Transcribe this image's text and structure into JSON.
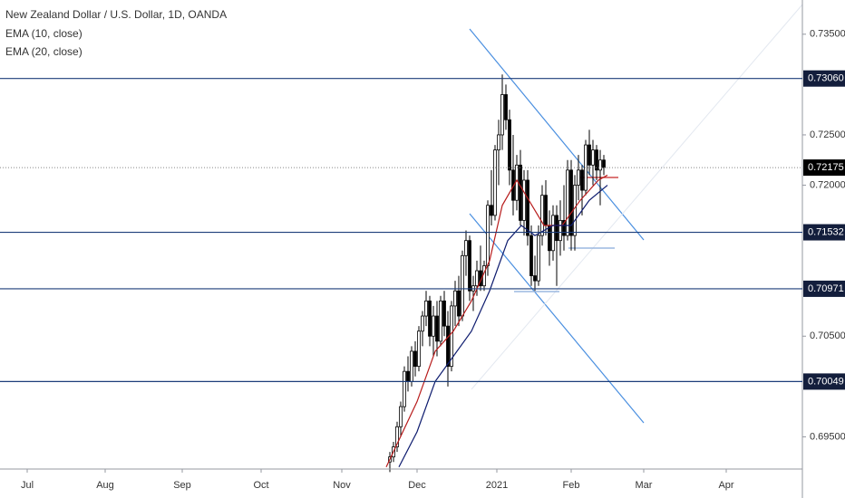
{
  "chart_data": {
    "type": "candlestick",
    "title": "New Zealand Dollar / U.S. Dollar, 1D, OANDA",
    "xlim": [
      -7.5,
      213.75
    ],
    "ylim": [
      0.6918,
      0.7384
    ],
    "xticks": [
      {
        "value": 0,
        "label": "Jul"
      },
      {
        "value": 21.5,
        "label": "Aug"
      },
      {
        "value": 42.75,
        "label": "Sep"
      },
      {
        "value": 64.5,
        "label": "Oct"
      },
      {
        "value": 86.75,
        "label": "Nov"
      },
      {
        "value": 107.5,
        "label": "Dec"
      },
      {
        "value": 129.5,
        "label": "2021"
      },
      {
        "value": 150,
        "label": "Feb"
      },
      {
        "value": 170,
        "label": "Mar"
      },
      {
        "value": 192.75,
        "label": "Apr"
      }
    ],
    "yticks": [
      {
        "value": 0.735,
        "label": "0.73500"
      },
      {
        "value": 0.725,
        "label": "0.72500"
      },
      {
        "value": 0.72,
        "label": "0.72000"
      },
      {
        "value": 0.705,
        "label": "0.70500"
      },
      {
        "value": 0.695,
        "label": "0.69500"
      }
    ],
    "up_color": "#ffffff",
    "down_color": "#000000",
    "candles": {
      "x": [
        100,
        101,
        102,
        103,
        104,
        105,
        106,
        107,
        108,
        109,
        110,
        111,
        112,
        113,
        114,
        115,
        116,
        117,
        118,
        119,
        120,
        121,
        122,
        123,
        124,
        125,
        126,
        127,
        128,
        129,
        130,
        131,
        132,
        133,
        134,
        135,
        136,
        137,
        138,
        139,
        140,
        141,
        142,
        143,
        144,
        145,
        146,
        147,
        148,
        149,
        150,
        151,
        152,
        153,
        154,
        155,
        156,
        157,
        158,
        159
      ],
      "open": [
        0.6925,
        0.693,
        0.694,
        0.696,
        0.698,
        0.7015,
        0.7005,
        0.7035,
        0.702,
        0.7055,
        0.707,
        0.7085,
        0.705,
        0.707,
        0.7045,
        0.7085,
        0.706,
        0.702,
        0.708,
        0.7095,
        0.707,
        0.713,
        0.7145,
        0.7095,
        0.71,
        0.7115,
        0.71,
        0.712,
        0.718,
        0.717,
        0.7235,
        0.725,
        0.729,
        0.7265,
        0.7215,
        0.7185,
        0.722,
        0.7165,
        0.7205,
        0.715,
        0.711,
        0.7105,
        0.715,
        0.719,
        0.716,
        0.7135,
        0.717,
        0.7145,
        0.7165,
        0.715,
        0.7215,
        0.715,
        0.72,
        0.7215,
        0.7195,
        0.724,
        0.722,
        0.7235,
        0.7215,
        0.7225
      ],
      "high": [
        0.6935,
        0.6945,
        0.6965,
        0.6985,
        0.702,
        0.703,
        0.704,
        0.7045,
        0.706,
        0.7075,
        0.7095,
        0.709,
        0.708,
        0.7085,
        0.709,
        0.7095,
        0.7075,
        0.7085,
        0.7105,
        0.711,
        0.7135,
        0.7155,
        0.715,
        0.711,
        0.7125,
        0.714,
        0.7125,
        0.7185,
        0.7215,
        0.724,
        0.7265,
        0.731,
        0.73,
        0.7275,
        0.725,
        0.723,
        0.7235,
        0.7215,
        0.7215,
        0.716,
        0.713,
        0.716,
        0.72,
        0.7205,
        0.7175,
        0.718,
        0.718,
        0.7185,
        0.72,
        0.7225,
        0.7225,
        0.721,
        0.723,
        0.722,
        0.7245,
        0.7255,
        0.7245,
        0.724,
        0.7235,
        0.723
      ],
      "low": [
        0.6915,
        0.6925,
        0.6935,
        0.695,
        0.6975,
        0.6995,
        0.7,
        0.701,
        0.7015,
        0.704,
        0.706,
        0.704,
        0.703,
        0.703,
        0.704,
        0.705,
        0.7,
        0.7015,
        0.706,
        0.706,
        0.7065,
        0.711,
        0.7085,
        0.7075,
        0.709,
        0.7095,
        0.7095,
        0.711,
        0.716,
        0.7165,
        0.72,
        0.7235,
        0.7255,
        0.72,
        0.717,
        0.7175,
        0.716,
        0.715,
        0.714,
        0.71,
        0.7095,
        0.71,
        0.714,
        0.715,
        0.712,
        0.7125,
        0.71,
        0.713,
        0.7135,
        0.7145,
        0.7135,
        0.7135,
        0.7185,
        0.717,
        0.719,
        0.721,
        0.72,
        0.7205,
        0.718,
        0.721
      ],
      "close": [
        0.693,
        0.694,
        0.696,
        0.698,
        0.7015,
        0.7005,
        0.7035,
        0.702,
        0.7055,
        0.707,
        0.7085,
        0.705,
        0.707,
        0.7045,
        0.7085,
        0.706,
        0.702,
        0.708,
        0.7095,
        0.707,
        0.713,
        0.7145,
        0.7095,
        0.71,
        0.7115,
        0.71,
        0.712,
        0.718,
        0.717,
        0.7235,
        0.725,
        0.729,
        0.7265,
        0.7215,
        0.7185,
        0.722,
        0.7165,
        0.7205,
        0.715,
        0.711,
        0.7105,
        0.715,
        0.719,
        0.716,
        0.7135,
        0.717,
        0.7145,
        0.7165,
        0.715,
        0.7215,
        0.715,
        0.72,
        0.7215,
        0.7195,
        0.724,
        0.722,
        0.7235,
        0.7215,
        0.7225,
        0.72175
      ]
    },
    "series": [
      {
        "name": "EMA (10, close)",
        "color": "#b71c1c",
        "x": [
          99,
          107.5,
          112.5,
          117.5,
          122.5,
          127.5,
          131,
          135,
          140,
          142.5,
          147.5,
          152.5,
          157.5,
          160
        ],
        "values": [
          0.692,
          0.6985,
          0.7035,
          0.7055,
          0.7085,
          0.7125,
          0.718,
          0.7205,
          0.7175,
          0.716,
          0.716,
          0.7185,
          0.7205,
          0.721
        ]
      },
      {
        "name": "EMA (20, close)",
        "color": "#0d1b6e",
        "x": [
          102.5,
          107.5,
          112.5,
          117.5,
          122.5,
          127.5,
          132.5,
          136.25,
          140,
          145,
          150,
          155,
          160
        ],
        "values": [
          0.692,
          0.6955,
          0.7005,
          0.703,
          0.7055,
          0.7095,
          0.7145,
          0.716,
          0.715,
          0.716,
          0.716,
          0.7185,
          0.72
        ]
      }
    ],
    "levels": [
      {
        "value": 0.7306,
        "label": "0.73060"
      },
      {
        "value": 0.71532,
        "label": "0.71532"
      },
      {
        "value": 0.70971,
        "label": "0.70971"
      },
      {
        "value": 0.70049,
        "label": "0.70049"
      }
    ],
    "last_price": {
      "value": 0.72175,
      "label": "0.72175"
    }
  }
}
